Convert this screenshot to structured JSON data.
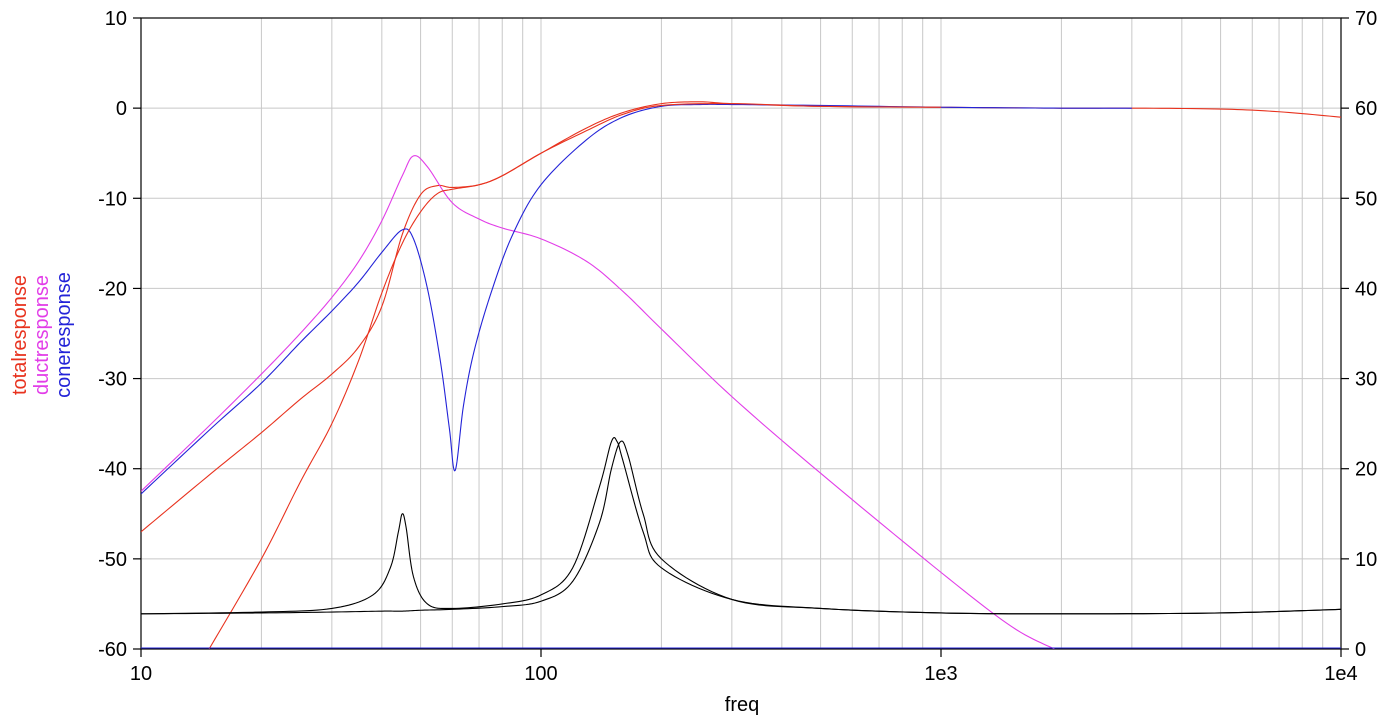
{
  "chart_data": {
    "type": "line",
    "xlabel": "freq",
    "x_scale": "log",
    "xlim": [
      10,
      10000
    ],
    "x_ticks": [
      {
        "value": 10,
        "label": "10"
      },
      {
        "value": 100,
        "label": "100"
      },
      {
        "value": 1000,
        "label": "1e3"
      },
      {
        "value": 10000,
        "label": "1e4"
      }
    ],
    "ylim_left": [
      -60,
      10
    ],
    "y_ticks_left": [
      "10",
      "0",
      "-10",
      "-20",
      "-30",
      "-40",
      "-50",
      "-60"
    ],
    "ylim_right": [
      0,
      70
    ],
    "y_ticks_right": [
      "70",
      "60",
      "50",
      "40",
      "30",
      "20",
      "10",
      "0"
    ],
    "grid": true,
    "legend_position": "left, rotated vertical",
    "series_labels": [
      {
        "name": "totalresponse",
        "color": "#e8321e"
      },
      {
        "name": "ductresponse",
        "color": "#e23de8"
      },
      {
        "name": "coneresponse",
        "color": "#2323d8"
      }
    ],
    "series": [
      {
        "name": "totalresponse",
        "axis": "left",
        "color": "#e8321e",
        "x": [
          10,
          15,
          20,
          25,
          30,
          35,
          40,
          45,
          50,
          55,
          60,
          70,
          80,
          100,
          130,
          160,
          200,
          250,
          300,
          500,
          1000,
          2000,
          3000,
          5000,
          7000,
          10000
        ],
        "y": [
          -47,
          -40.5,
          -36,
          -32.3,
          -29.5,
          -26.5,
          -22,
          -14,
          -9.6,
          -8.6,
          -8.8,
          -8.5,
          -7.5,
          -5,
          -2.2,
          -0.5,
          0.5,
          0.7,
          0.5,
          0.2,
          0.1,
          0,
          0,
          -0.1,
          -0.4,
          -1.0
        ]
      },
      {
        "name": "ductresponse",
        "axis": "left",
        "color": "#e23de8",
        "x": [
          10,
          15,
          20,
          25,
          30,
          35,
          40,
          45,
          48,
          52,
          60,
          70,
          80,
          100,
          130,
          160,
          200,
          300,
          500,
          1000,
          1500,
          1920
        ],
        "y": [
          -42.5,
          -35,
          -29.5,
          -25,
          -21,
          -17,
          -12.5,
          -7.5,
          -5.3,
          -6.5,
          -10.5,
          -12.3,
          -13.3,
          -14.5,
          -17,
          -20.3,
          -24.5,
          -32,
          -40.5,
          -51.5,
          -57.5,
          -60
        ]
      },
      {
        "name": "coneresponse",
        "axis": "left",
        "color": "#2323d8",
        "x": [
          10,
          15,
          20,
          25,
          30,
          35,
          40,
          45,
          48,
          52,
          56,
          59,
          61,
          64,
          68,
          75,
          85,
          100,
          130,
          160,
          200,
          250,
          300,
          500,
          1000,
          2000,
          3000
        ],
        "y": [
          -42.8,
          -35.5,
          -30.5,
          -26,
          -22.5,
          -19.3,
          -16,
          -13.5,
          -14.5,
          -20,
          -28,
          -35.5,
          -40.2,
          -33,
          -27,
          -20.5,
          -14,
          -8.5,
          -3.5,
          -1,
          0.2,
          0.4,
          0.4,
          0.3,
          0.1,
          0,
          0
        ]
      },
      {
        "name": "",
        "axis": "left",
        "color": "#e8321e",
        "x": [
          14.8,
          20,
          25,
          30,
          35,
          40,
          45,
          50,
          55,
          60,
          70,
          80,
          100,
          130,
          160,
          200,
          300,
          500,
          1000
        ],
        "y": [
          -60,
          -50,
          -41.5,
          -35,
          -28,
          -20.5,
          -15,
          -11.5,
          -9.5,
          -9,
          -8.5,
          -7.5,
          -5,
          -2.5,
          -0.7,
          0.3,
          0.5,
          0.2,
          0.1
        ]
      },
      {
        "name": "",
        "axis": "right",
        "color": "#000000",
        "x": [
          10,
          20,
          30,
          38,
          42,
          44,
          45,
          46,
          48,
          52,
          60,
          80,
          100,
          120,
          140,
          150,
          155,
          160,
          180,
          200,
          300,
          500,
          1000,
          2000,
          5000,
          10000
        ],
        "y": [
          3.9,
          4.1,
          4.5,
          6,
          9,
          13,
          15,
          13.5,
          8,
          5,
          4.5,
          5,
          6,
          9,
          18,
          23,
          23,
          21,
          13,
          9,
          5.5,
          4.5,
          4,
          3.9,
          4,
          4.4
        ]
      },
      {
        "name": "",
        "axis": "right",
        "color": "#000000",
        "x": [
          10,
          20,
          30,
          40,
          45,
          50,
          60,
          80,
          100,
          120,
          140,
          150,
          158,
          165,
          180,
          200,
          300,
          500,
          1000,
          2000,
          5000,
          10000
        ],
        "y": [
          3.9,
          4.0,
          4.1,
          4.2,
          4.2,
          4.3,
          4.4,
          4.7,
          5.3,
          7.5,
          14,
          20,
          23,
          21.5,
          15,
          10,
          5.5,
          4.5,
          4.0,
          3.9,
          4.0,
          4.4
        ]
      }
    ]
  }
}
